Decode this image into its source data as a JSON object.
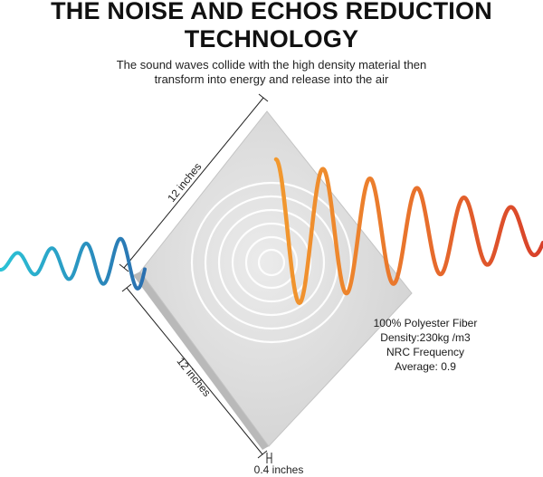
{
  "headline": {
    "line1": "THE NOISE AND ECHOS REDUCTION",
    "line2": "TECHNOLOGY"
  },
  "description": {
    "line1": "The sound waves collide with the high density material then",
    "line2": "transform into energy and release into the air"
  },
  "dimensions": {
    "top_edge": "12 inches",
    "bottom_edge": "12 inches",
    "thickness": "0.4 inches"
  },
  "specs": {
    "material": "100% Polyester Fiber",
    "density": "Density:230kg /m3",
    "nrc_label": "NRC Frequency",
    "nrc_average": "Average: 0.9"
  },
  "colors": {
    "incoming_wave_start": "#2bc3d6",
    "incoming_wave_end": "#2a6fb0",
    "outgoing_wave_start": "#f29a2e",
    "outgoing_wave_end": "#d8402a",
    "panel_fill": "#dcdcdc",
    "ripple": "#ffffff"
  }
}
